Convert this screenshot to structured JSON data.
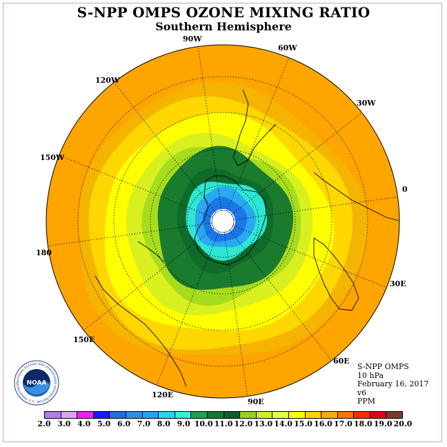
{
  "title": "S-NPP OMPS OZONE MIXING RATIO",
  "subtitle": "Southern Hemisphere",
  "logo_text": "NOAA",
  "logo_ring_text": "NATIONAL OCEANIC AND ATMOSPHERIC ADMINISTRATION · U.S. DEPARTMENT OF COMMERCE",
  "longitude_labels": [
    {
      "id": "lon-90w",
      "text": "90W"
    },
    {
      "id": "lon-60w",
      "text": "60W"
    },
    {
      "id": "lon-120w",
      "text": "120W"
    },
    {
      "id": "lon-30w",
      "text": "30W"
    },
    {
      "id": "lon-150w",
      "text": "150W"
    },
    {
      "id": "lon-0",
      "text": "0"
    },
    {
      "id": "lon-180",
      "text": "180"
    },
    {
      "id": "lon-30e",
      "text": "30E"
    },
    {
      "id": "lon-150e",
      "text": "150E"
    },
    {
      "id": "lon-60e",
      "text": "60E"
    },
    {
      "id": "lon-120e",
      "text": "120E"
    },
    {
      "id": "lon-90e",
      "text": "90E"
    }
  ],
  "info": {
    "instrument": "S-NPP OMPS",
    "pressure": "10 hPa",
    "date": "February 16, 2017",
    "version": "v6",
    "units": "PPM"
  },
  "colorbar": {
    "colors": [
      "#b57be6",
      "#d7a6f2",
      "#ee22ee",
      "#1a1aff",
      "#1e6fe6",
      "#2c8df0",
      "#21a6f5",
      "#2ad2f5",
      "#33f0d8",
      "#1ca34c",
      "#0e7a35",
      "#0a5f2a",
      "#9ad21a",
      "#c8f025",
      "#e6ff3c",
      "#ffff00",
      "#ffd400",
      "#ffaa00",
      "#ff7300",
      "#ff2d00",
      "#e0001e",
      "#7a3a2a"
    ],
    "tick_labels": [
      "2.0",
      "3.0",
      "4.0",
      "5.0",
      "6.0",
      "7.0",
      "8.0",
      "9.0",
      "10.0",
      "11.0",
      "12.0",
      "13.0",
      "14.0",
      "15.0",
      "16.0",
      "17.0",
      "18.0",
      "19.0",
      "20.0"
    ]
  },
  "map_fields": {
    "ring_colors": [
      "#ffa500",
      "#f5b400",
      "#ffd700",
      "#ffff00",
      "#d8f020",
      "#a8dc1e",
      "#1a7a2e",
      "#0e6b2a",
      "#2ee6d2",
      "#2aa8f0",
      "#1a78e6",
      "#ffffff"
    ]
  }
}
